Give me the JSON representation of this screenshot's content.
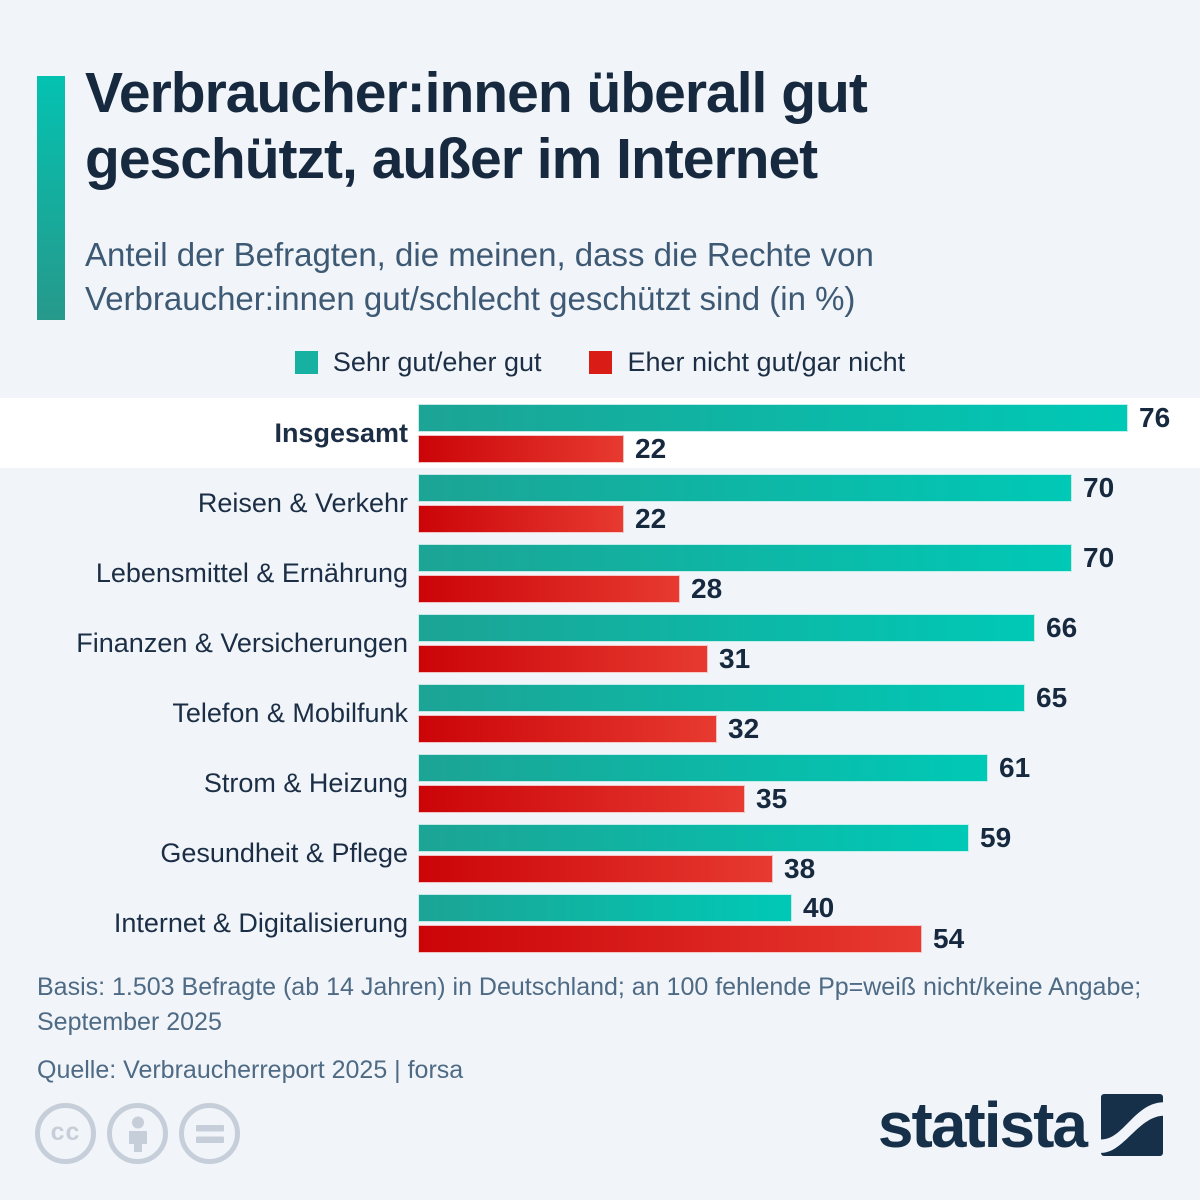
{
  "page": {
    "background": "#f1f5f9"
  },
  "header": {
    "title_line1": "Verbraucher:innen überall gut",
    "title_line2": "geschützt, außer im Internet",
    "subtitle_line1": "Anteil der Befragten, die meinen, dass die Rechte von",
    "subtitle_line2": "Verbraucher:innen gut/schlecht geschützt sind (in %)",
    "accent_color_top": "#04c2b1",
    "accent_color_bottom": "#26998b"
  },
  "legend": [
    {
      "label": "Sehr gut/eher gut",
      "color": "#17b1a2"
    },
    {
      "label": "Eher nicht gut/gar nicht",
      "color": "#da1c17"
    }
  ],
  "chart_data": {
    "type": "bar",
    "orientation": "horizontal",
    "title": "Verbraucher:innen überall gut geschützt, außer im Internet",
    "subtitle": "Anteil der Befragten, die meinen, dass die Rechte von Verbraucher:innen gut/schlecht geschützt sind (in %)",
    "categories": [
      "Insgesamt",
      "Reisen & Verkehr",
      "Lebensmittel & Ernährung",
      "Finanzen & Versicherungen",
      "Telefon & Mobilfunk",
      "Strom & Heizung",
      "Gesundheit & Pflege",
      "Internet & Digitalisierung"
    ],
    "series": [
      {
        "name": "Sehr gut/eher gut",
        "values": [
          76,
          70,
          70,
          66,
          65,
          61,
          59,
          40
        ],
        "gradient": [
          "#1ca495",
          "#00c9b6"
        ]
      },
      {
        "name": "Eher nicht gut/gar nicht",
        "values": [
          22,
          22,
          28,
          31,
          32,
          35,
          38,
          54
        ],
        "gradient": [
          "#cb0408",
          "#e73a30"
        ]
      }
    ],
    "xlim": [
      0,
      76
    ],
    "value_labels": true,
    "grid": false,
    "legend_position": "top",
    "highlighted_category": "Insgesamt"
  },
  "footer": {
    "basis_line1": "Basis: 1.503 Befragte (ab 14 Jahren) in Deutschland; an 100 fehlende Pp=weiß nicht/keine Angabe;",
    "basis_line2": "September 2025",
    "source": "Quelle: Verbraucherreport 2025 | forsa"
  },
  "branding": {
    "logo_text": "statista",
    "logo_color": "#16304a",
    "license_icons": [
      {
        "name": "cc-icon",
        "glyph": "cc"
      },
      {
        "name": "attribution-person-icon",
        "glyph": ""
      },
      {
        "name": "equals-icon",
        "glyph": "="
      }
    ]
  }
}
